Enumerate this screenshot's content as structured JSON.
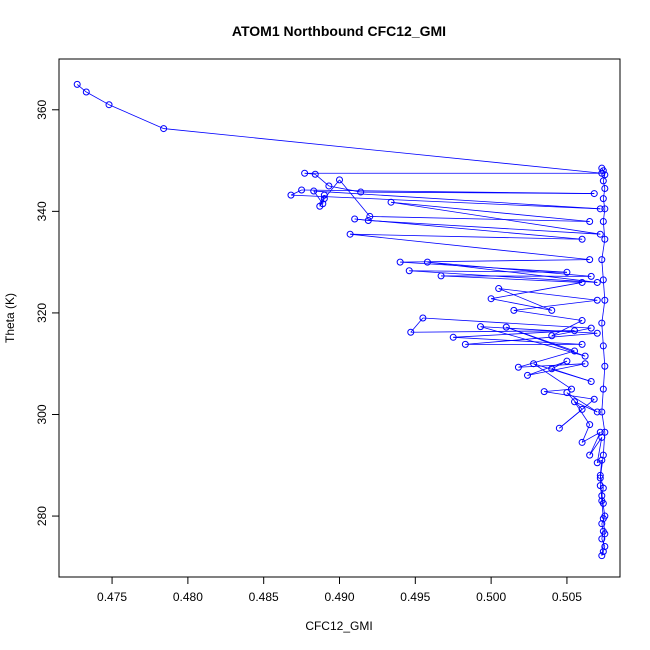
{
  "chart_data": {
    "type": "line",
    "title": "ATOM1 Northbound CFC12_GMI",
    "xlabel": "CFC12_GMI",
    "ylabel": "Theta (K)",
    "xlim": [
      0.4715,
      0.5085
    ],
    "ylim": [
      268,
      370
    ],
    "xticks": [
      0.475,
      0.48,
      0.485,
      0.49,
      0.495,
      0.5,
      0.505
    ],
    "xtick_labels": [
      "0.475",
      "0.480",
      "0.485",
      "0.490",
      "0.495",
      "0.500",
      "0.505"
    ],
    "yticks": [
      280,
      300,
      320,
      340,
      360
    ],
    "ytick_labels": [
      "280",
      "300",
      "320",
      "340",
      "360"
    ],
    "grid": false,
    "color": "#0000ff",
    "marker": "open-circle",
    "series": [
      {
        "x": [
          0.4727,
          0.4733,
          0.4748,
          0.4784,
          0.5073,
          0.4877,
          0.4884,
          0.4893,
          0.4914,
          0.5068,
          0.4875,
          0.4868,
          0.5072,
          0.4883,
          0.4889,
          0.489,
          0.4887,
          0.489,
          0.49,
          0.492,
          0.5065,
          0.4934,
          0.5072,
          0.4919,
          0.491,
          0.506,
          0.4907,
          0.5065,
          0.494,
          0.505,
          0.4946,
          0.507,
          0.4958,
          0.5066,
          0.4967,
          0.506,
          0.5,
          0.504,
          0.5005,
          0.507,
          0.5015,
          0.506,
          0.504,
          0.5066,
          0.4955,
          0.4947,
          0.5055,
          0.4975,
          0.506,
          0.4983,
          0.507,
          0.4993,
          0.5062,
          0.501,
          0.5055,
          0.5018,
          0.5062,
          0.5024,
          0.505,
          0.504,
          0.5066,
          0.5028,
          0.5053,
          0.5035,
          0.5068,
          0.5045,
          0.506,
          0.505,
          0.507,
          0.5055,
          0.5065,
          0.506,
          0.5072,
          0.5065,
          0.5073,
          0.507,
          0.5073,
          0.5072,
          0.5074,
          0.5073,
          0.5074,
          0.5072,
          0.5075,
          0.5073,
          0.5074,
          0.5073,
          0.5075,
          0.5074,
          0.5073,
          0.5075,
          0.5074,
          0.5073,
          0.5072,
          0.5074,
          0.5075,
          0.5073,
          0.5074,
          0.5075,
          0.5074,
          0.5073,
          0.5075,
          0.5074,
          0.5073,
          0.5075,
          0.5074,
          0.5075,
          0.5074,
          0.5075,
          0.5074,
          0.5075,
          0.5074,
          0.5073
        ],
        "y": [
          365.0,
          363.5,
          361.0,
          356.3,
          347.5,
          347.5,
          347.3,
          345.0,
          343.8,
          343.5,
          344.2,
          343.2,
          340.5,
          344.0,
          341.5,
          343.2,
          341.0,
          342.5,
          346.2,
          339.0,
          338.0,
          341.8,
          335.5,
          338.2,
          338.5,
          334.5,
          335.5,
          330.5,
          330.0,
          328.0,
          328.3,
          326.0,
          330.0,
          327.2,
          327.3,
          326.0,
          322.8,
          320.5,
          324.8,
          322.5,
          320.5,
          318.5,
          315.5,
          317.0,
          319.0,
          316.2,
          316.5,
          315.2,
          313.8,
          313.8,
          316.0,
          317.3,
          311.5,
          317.2,
          312.5,
          309.3,
          310.0,
          307.7,
          310.5,
          309.0,
          306.5,
          310.0,
          305.0,
          304.5,
          303.0,
          297.3,
          301.0,
          304.3,
          300.5,
          302.5,
          298.0,
          294.5,
          296.5,
          292.0,
          295.5,
          290.5,
          291.0,
          288.0,
          285.5,
          284.0,
          282.5,
          286.0,
          280.0,
          278.5,
          277.0,
          275.5,
          274.0,
          273.0,
          272.2,
          276.5,
          279.5,
          283.0,
          287.5,
          292.0,
          296.5,
          300.5,
          305.0,
          309.5,
          313.5,
          318.0,
          322.5,
          326.5,
          330.5,
          334.5,
          338.0,
          340.5,
          342.5,
          344.5,
          346.0,
          347.2,
          348.0,
          348.5
        ]
      }
    ]
  }
}
